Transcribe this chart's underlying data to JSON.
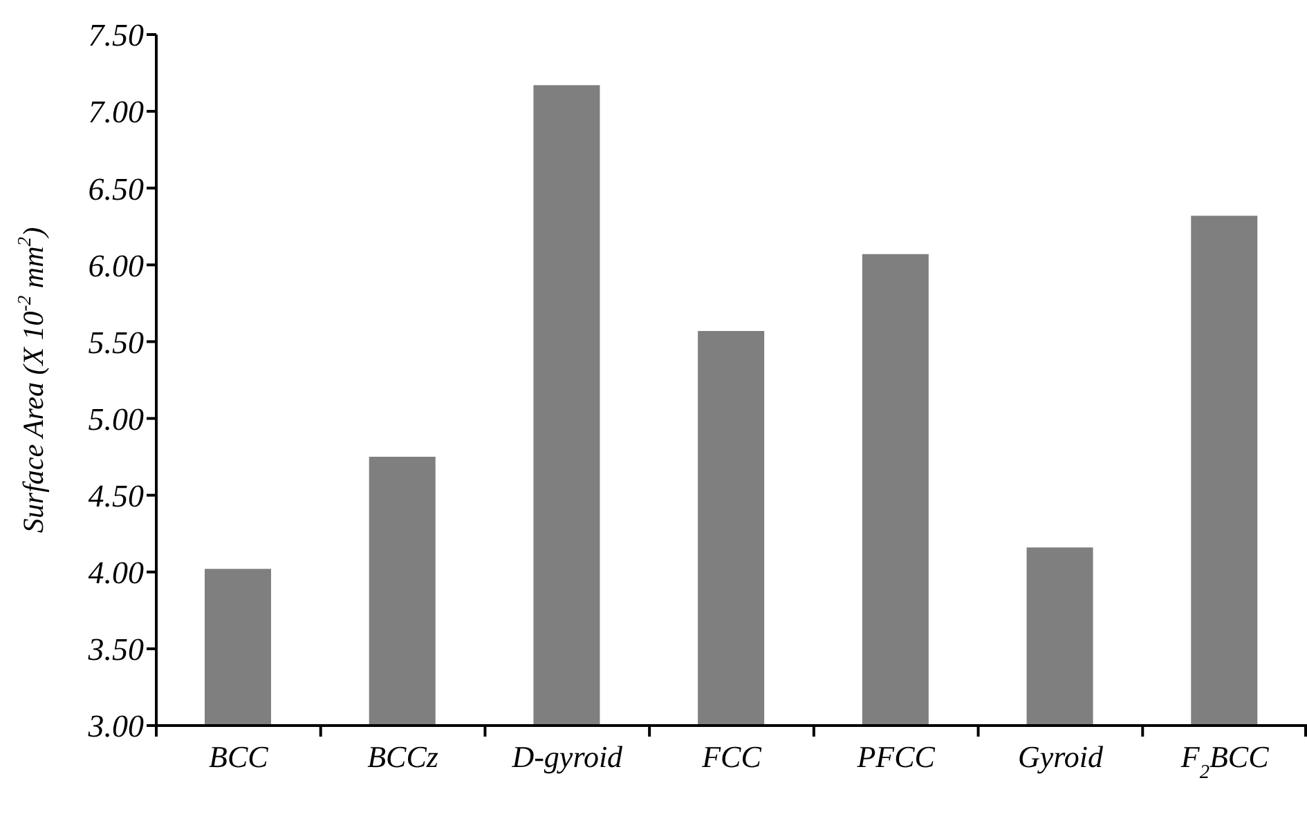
{
  "chart_data": {
    "type": "bar",
    "ylabel": "Surface Area (X 10$^{-2}$ mm$^{2}$)",
    "categories": [
      "BCC",
      "BCCz",
      "D-gyroid",
      "FCC",
      "PFCC",
      "Gyroid",
      "F$_{2}$BCC"
    ],
    "values": [
      4.02,
      4.75,
      7.17,
      5.57,
      6.07,
      4.16,
      6.32
    ],
    "color": "#7f7f7f",
    "ylim": [
      3,
      7.5
    ],
    "yticks": [
      {
        "value": 3,
        "label": "3.00"
      },
      {
        "value": 3.5,
        "label": "3.50"
      },
      {
        "value": 4,
        "label": "4.00"
      },
      {
        "value": 4.5,
        "label": "4.50"
      },
      {
        "value": 5,
        "label": "5.00"
      },
      {
        "value": 5.5,
        "label": "5.50"
      },
      {
        "value": 6,
        "label": "6.00"
      },
      {
        "value": 6.5,
        "label": "6.50"
      },
      {
        "value": 7,
        "label": "7.00"
      },
      {
        "value": 7.5,
        "label": "7.50"
      }
    ],
    "grid": false,
    "legend": false
  }
}
